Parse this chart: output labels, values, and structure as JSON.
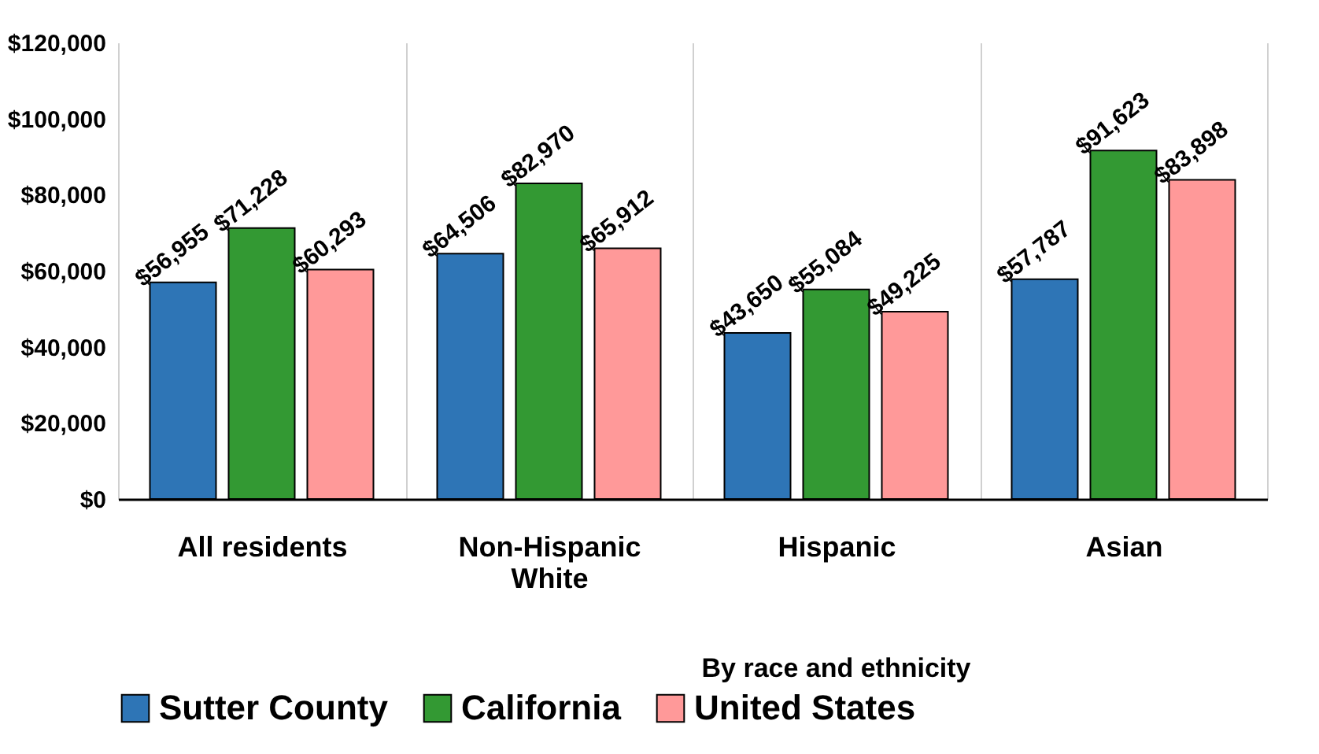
{
  "chart_data": {
    "type": "bar",
    "categories": [
      "All residents",
      "Non-Hispanic White",
      "Hispanic",
      "Asian"
    ],
    "series": [
      {
        "name": "Sutter County",
        "color": "#2e75b6",
        "values": [
          56955,
          64506,
          43650,
          57787
        ],
        "value_labels": [
          "$56,955",
          "$64,506",
          "$43,650",
          "$57,787"
        ]
      },
      {
        "name": "California",
        "color": "#339933",
        "values": [
          71228,
          82970,
          55084,
          91623
        ],
        "value_labels": [
          "$71,228",
          "$82,970",
          "$55,084",
          "$91,623"
        ]
      },
      {
        "name": "United States",
        "color": "#ff9999",
        "values": [
          60293,
          65912,
          49225,
          83898
        ],
        "value_labels": [
          "$60,293",
          "$65,912",
          "$49,225",
          "$83,898"
        ]
      }
    ],
    "ylim": [
      0,
      120000
    ],
    "yticks": [
      {
        "value": 0,
        "label": "$0"
      },
      {
        "value": 20000,
        "label": "$20,000"
      },
      {
        "value": 40000,
        "label": "$40,000"
      },
      {
        "value": 60000,
        "label": "$60,000"
      },
      {
        "value": 80000,
        "label": "$80,000"
      },
      {
        "value": 100000,
        "label": "$100,000"
      },
      {
        "value": 120000,
        "label": "$120,000"
      }
    ],
    "annotations": [
      "By race and ethnicity"
    ],
    "grid": "x",
    "legend": "bottom"
  }
}
